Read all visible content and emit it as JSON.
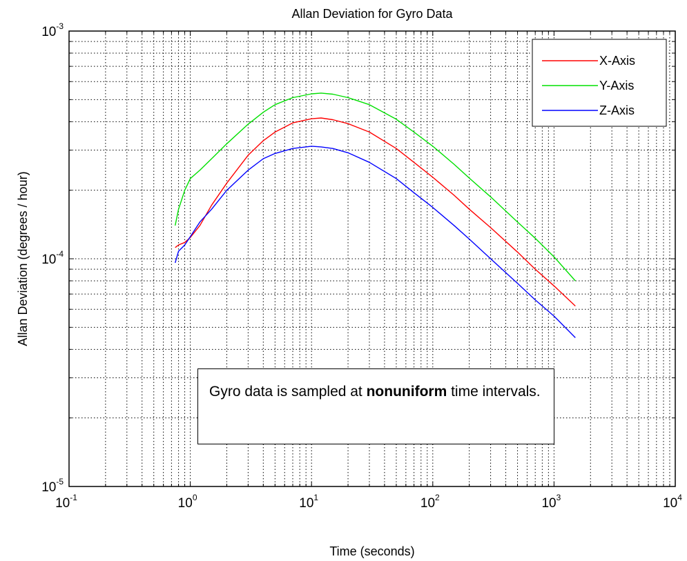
{
  "chart_data": {
    "type": "line",
    "title": "Allan Deviation for Gyro Data",
    "xlabel": "Time (seconds)",
    "ylabel": "Allan Deviation (degrees / hour)",
    "xscale": "log",
    "yscale": "log",
    "xlim": [
      0.1,
      10000
    ],
    "ylim": [
      1e-05,
      0.001
    ],
    "grid": true,
    "legend_position": "top-right",
    "x_ticks": [
      {
        "base": "10",
        "exp": "-1",
        "value": 0.1
      },
      {
        "base": "10",
        "exp": "0",
        "value": 1
      },
      {
        "base": "10",
        "exp": "1",
        "value": 10
      },
      {
        "base": "10",
        "exp": "2",
        "value": 100
      },
      {
        "base": "10",
        "exp": "3",
        "value": 1000
      },
      {
        "base": "10",
        "exp": "4",
        "value": 10000
      }
    ],
    "y_ticks": [
      {
        "base": "10",
        "exp": "-5",
        "value": 1e-05
      },
      {
        "base": "10",
        "exp": "-4",
        "value": 0.0001
      },
      {
        "base": "10",
        "exp": "-3",
        "value": 0.001
      }
    ],
    "x": [
      0.75,
      0.8,
      0.9,
      1.0,
      1.2,
      1.5,
      2,
      3,
      4,
      5,
      7,
      10,
      12,
      15,
      20,
      30,
      50,
      70,
      100,
      150,
      200,
      300,
      500,
      700,
      1000,
      1500
    ],
    "series": [
      {
        "name": "X-Axis",
        "color": "#ff0000",
        "values": [
          0.000112,
          0.000115,
          0.000118,
          0.000124,
          0.00014,
          0.000172,
          0.000215,
          0.000285,
          0.00033,
          0.00036,
          0.000395,
          0.000412,
          0.000415,
          0.000408,
          0.000392,
          0.00036,
          0.000305,
          0.000265,
          0.000228,
          0.00019,
          0.000165,
          0.000137,
          0.000107,
          9e-05,
          7.6e-05,
          6.2e-05
        ]
      },
      {
        "name": "Y-Axis",
        "color": "#00e000",
        "values": [
          0.00014,
          0.000165,
          0.0002,
          0.000225,
          0.000245,
          0.000275,
          0.00032,
          0.00039,
          0.00044,
          0.000475,
          0.00051,
          0.00053,
          0.000534,
          0.000528,
          0.00051,
          0.000475,
          0.00041,
          0.00036,
          0.000312,
          0.00026,
          0.000226,
          0.000187,
          0.000145,
          0.000123,
          0.000102,
          8e-05
        ]
      },
      {
        "name": "Z-Axis",
        "color": "#0000ff",
        "values": [
          9.6e-05,
          0.000108,
          0.000115,
          0.000125,
          0.000145,
          0.000165,
          0.0002,
          0.000245,
          0.000275,
          0.00029,
          0.000305,
          0.000312,
          0.00031,
          0.000305,
          0.000292,
          0.000265,
          0.000225,
          0.000195,
          0.000168,
          0.00014,
          0.000122,
          0.0001,
          7.8e-05,
          6.6e-05,
          5.6e-05,
          4.5e-05
        ]
      }
    ]
  },
  "annotation": {
    "text_before": "Gyro data is sampled at ",
    "text_bold": "nonuniform",
    "text_after": " time intervals."
  }
}
